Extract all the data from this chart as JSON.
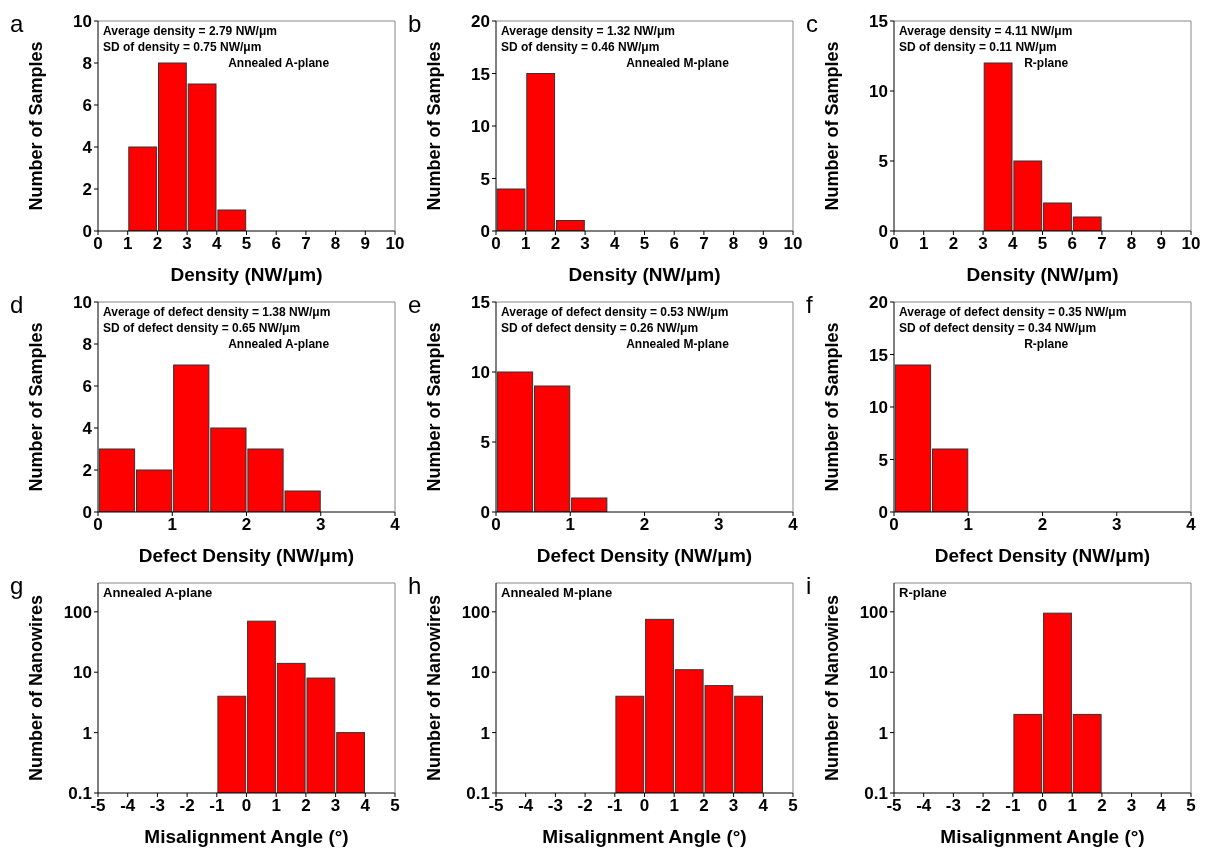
{
  "chart_data": [
    {
      "type": "histogram",
      "title": "a",
      "xlabel": "Density (NW/μm)",
      "ylabel": "Number of Samples",
      "bins": [
        1,
        2,
        3,
        4,
        5
      ],
      "values": [
        4,
        8,
        7,
        1
      ],
      "color": "#ff0000",
      "xlim": [
        0,
        10
      ],
      "xticks": [
        0,
        1,
        2,
        3,
        4,
        5,
        6,
        7,
        8,
        9,
        10
      ],
      "ylim": [
        0,
        10
      ],
      "yticks": [
        0,
        2,
        4,
        6,
        8,
        10
      ],
      "annotations": [
        "Average density = 2.79 NW/μm",
        "SD of density = 0.75 NW/μm",
        "Annealed A-plane"
      ]
    },
    {
      "type": "histogram",
      "title": "b",
      "xlabel": "Density (NW/μm)",
      "ylabel": "Number of Samples",
      "bins": [
        0,
        1,
        2,
        3
      ],
      "values": [
        4,
        15,
        1
      ],
      "color": "#ff0000",
      "xlim": [
        0,
        10
      ],
      "xticks": [
        0,
        1,
        2,
        3,
        4,
        5,
        6,
        7,
        8,
        9,
        10
      ],
      "ylim": [
        0,
        20
      ],
      "yticks": [
        0,
        5,
        10,
        15,
        20
      ],
      "annotations": [
        "Average density = 1.32 NW/μm",
        "SD of density = 0.46 NW/μm",
        "Annealed M-plane"
      ]
    },
    {
      "type": "histogram",
      "title": "c",
      "xlabel": "Density (NW/μm)",
      "ylabel": "Number of Samples",
      "bins": [
        3,
        4,
        5,
        6,
        7
      ],
      "values": [
        12,
        5,
        2,
        1
      ],
      "color": "#ff0000",
      "xlim": [
        0,
        10
      ],
      "xticks": [
        0,
        1,
        2,
        3,
        4,
        5,
        6,
        7,
        8,
        9,
        10
      ],
      "ylim": [
        0,
        15
      ],
      "yticks": [
        0,
        5,
        10,
        15
      ],
      "annotations": [
        "Average density = 4.11 NW/μm",
        "SD of density = 0.11 NW/μm",
        "R-plane"
      ]
    },
    {
      "type": "histogram",
      "title": "d",
      "xlabel": "Defect Density (NW/μm)",
      "ylabel": "Number of Samples",
      "bins": [
        0,
        0.5,
        1,
        1.5,
        2,
        2.5,
        3
      ],
      "values": [
        3,
        2,
        7,
        4,
        3,
        1
      ],
      "color": "#ff0000",
      "xlim": [
        0,
        4
      ],
      "xticks": [
        0,
        1,
        2,
        3,
        4
      ],
      "ylim": [
        0,
        10
      ],
      "yticks": [
        0,
        2,
        4,
        6,
        8,
        10
      ],
      "annotations": [
        "Average of defect density = 1.38 NW/μm",
        "SD of defect density = 0.65 NW/μm",
        "Annealed A-plane"
      ]
    },
    {
      "type": "histogram",
      "title": "e",
      "xlabel": "Defect Density (NW/μm)",
      "ylabel": "Number of Samples",
      "bins": [
        0,
        0.5,
        1,
        1.5
      ],
      "values": [
        10,
        9,
        1
      ],
      "color": "#ff0000",
      "xlim": [
        0,
        4
      ],
      "xticks": [
        0,
        1,
        2,
        3,
        4
      ],
      "ylim": [
        0,
        15
      ],
      "yticks": [
        0,
        5,
        10,
        15
      ],
      "annotations": [
        "Average of defect density = 0.53 NW/μm",
        "SD of defect density = 0.26 NW/μm",
        "Annealed M-plane"
      ]
    },
    {
      "type": "histogram",
      "title": "f",
      "xlabel": "Defect Density (NW/μm)",
      "ylabel": "Number of Samples",
      "bins": [
        0,
        0.5,
        1
      ],
      "values": [
        14,
        6
      ],
      "color": "#ff0000",
      "xlim": [
        0,
        4
      ],
      "xticks": [
        0,
        1,
        2,
        3,
        4
      ],
      "ylim": [
        0,
        20
      ],
      "yticks": [
        0,
        5,
        10,
        15,
        20
      ],
      "annotations": [
        "Average of defect density = 0.35 NW/μm",
        "SD of defect density = 0.34 NW/μm",
        "R-plane"
      ]
    },
    {
      "type": "histogram",
      "title": "g",
      "xlabel": "Misalignment Angle (°)",
      "ylabel": "Number of Nanowires",
      "bins": [
        -1,
        0,
        1,
        2,
        3,
        4
      ],
      "values": [
        4,
        70,
        14,
        8,
        1
      ],
      "color": "#ff0000",
      "xlim": [
        -5,
        5
      ],
      "xticks": [
        -5,
        -4,
        -3,
        -2,
        -1,
        0,
        1,
        2,
        3,
        4,
        5
      ],
      "ylim": [
        0.1,
        300
      ],
      "yticks": [
        0.1,
        1,
        10,
        100
      ],
      "log": true,
      "annotations": [
        "Annealed A-plane"
      ]
    },
    {
      "type": "histogram",
      "title": "h",
      "xlabel": "Misalignment Angle (°)",
      "ylabel": "Number of Nanowires",
      "bins": [
        -1,
        0,
        1,
        2,
        3,
        4
      ],
      "values": [
        4,
        75,
        11,
        6,
        4
      ],
      "color": "#ff0000",
      "xlim": [
        -5,
        5
      ],
      "xticks": [
        -5,
        -4,
        -3,
        -2,
        -1,
        0,
        1,
        2,
        3,
        4,
        5
      ],
      "ylim": [
        0.1,
        300
      ],
      "yticks": [
        0.1,
        1,
        10,
        100
      ],
      "log": true,
      "annotations": [
        "Annealed M-plane"
      ]
    },
    {
      "type": "histogram",
      "title": "i",
      "xlabel": "Misalignment Angle (°)",
      "ylabel": "Number of Nanowires",
      "bins": [
        -1,
        0,
        1,
        2
      ],
      "values": [
        2,
        95,
        2
      ],
      "color": "#ff0000",
      "xlim": [
        -5,
        5
      ],
      "xticks": [
        -5,
        -4,
        -3,
        -2,
        -1,
        0,
        1,
        2,
        3,
        4,
        5
      ],
      "ylim": [
        0.1,
        300
      ],
      "yticks": [
        0.1,
        1,
        10,
        100
      ],
      "log": true,
      "annotations": [
        "R-plane"
      ]
    }
  ]
}
